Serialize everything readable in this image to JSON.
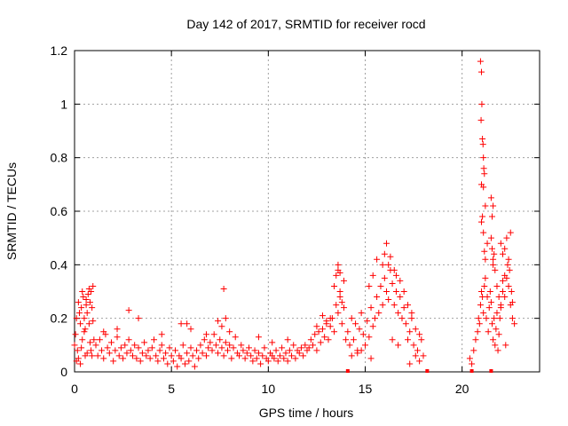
{
  "chart_data": {
    "type": "scatter",
    "title": "Day 142 of 2017, SRMTID for receiver rocd",
    "xlabel": "GPS time / hours",
    "ylabel": "SRMTID / TECUs",
    "xlim": [
      0,
      24
    ],
    "ylim": [
      0,
      1.2
    ],
    "xticks": [
      0,
      5,
      10,
      15,
      20
    ],
    "yticks": [
      0,
      0.2,
      0.4,
      0.6,
      0.8,
      1,
      1.2
    ],
    "xtick_labels": [
      "0",
      "5",
      "10",
      "15",
      "20"
    ],
    "ytick_labels": [
      "0",
      "0.2",
      "0.4",
      "0.6",
      "0.8",
      "1",
      "1.2"
    ],
    "grid": true,
    "marker": "+",
    "series_color": "#ff0000",
    "series": [
      {
        "name": "SRMTID",
        "x": [
          0.0,
          0.05,
          0.1,
          0.15,
          0.2,
          0.25,
          0.3,
          0.35,
          0.4,
          0.45,
          0.5,
          0.55,
          0.6,
          0.65,
          0.7,
          0.75,
          0.8,
          0.85,
          0.9,
          0.95,
          1.0,
          0.2,
          0.35,
          0.5,
          0.65,
          0.8,
          0.9,
          0.4,
          0.6,
          0.75,
          0.1,
          0.3,
          0.55,
          0.85,
          0.95,
          1.1,
          1.2,
          1.3,
          1.4,
          1.5,
          1.6,
          1.7,
          1.8,
          1.9,
          2.0,
          2.1,
          2.2,
          2.3,
          2.4,
          2.5,
          2.6,
          2.7,
          2.8,
          2.9,
          3.0,
          3.1,
          3.2,
          3.3,
          3.4,
          3.5,
          3.6,
          3.7,
          3.8,
          3.9,
          4.0,
          4.1,
          4.2,
          4.3,
          4.4,
          4.5,
          4.6,
          4.7,
          4.8,
          4.9,
          5.0,
          2.8,
          3.3,
          1.5,
          2.2,
          4.5,
          5.1,
          5.2,
          5.3,
          5.4,
          5.5,
          5.6,
          5.7,
          5.8,
          5.9,
          6.0,
          6.1,
          6.2,
          6.3,
          6.4,
          6.5,
          6.6,
          6.7,
          6.8,
          6.9,
          7.0,
          7.1,
          7.2,
          7.3,
          7.4,
          7.5,
          7.6,
          7.7,
          7.8,
          7.9,
          8.0,
          8.1,
          8.2,
          8.3,
          8.4,
          8.5,
          8.6,
          8.7,
          8.8,
          8.9,
          9.0,
          5.5,
          6.0,
          7.4,
          7.6,
          7.7,
          7.8,
          8.0,
          6.8,
          5.8,
          9.1,
          9.2,
          9.3,
          9.4,
          9.5,
          9.6,
          9.7,
          9.8,
          9.9,
          10.0,
          10.1,
          10.2,
          10.3,
          10.4,
          10.5,
          10.6,
          10.7,
          10.8,
          10.9,
          11.0,
          11.1,
          11.2,
          11.3,
          11.4,
          11.5,
          11.6,
          11.7,
          11.8,
          11.9,
          12.0,
          9.5,
          10.2,
          11.0,
          12.1,
          12.2,
          12.3,
          12.4,
          12.5,
          12.6,
          12.7,
          12.8,
          12.9,
          13.0,
          13.1,
          13.2,
          13.3,
          13.4,
          13.5,
          13.6,
          13.7,
          13.8,
          13.9,
          14.0,
          12.5,
          13.0,
          13.4,
          13.5,
          13.6,
          13.7,
          13.8,
          13.9,
          13.6,
          13.7,
          12.8,
          13.2,
          14.1,
          14.2,
          14.3,
          14.4,
          14.5,
          14.6,
          14.7,
          14.8,
          14.9,
          15.0,
          15.1,
          15.2,
          15.3,
          15.4,
          15.5,
          15.6,
          15.7,
          15.8,
          15.9,
          16.0,
          16.1,
          16.2,
          16.3,
          16.4,
          16.5,
          16.6,
          16.7,
          16.8,
          16.9,
          17.0,
          15.2,
          15.4,
          15.6,
          15.9,
          16.0,
          16.1,
          16.2,
          16.3,
          16.5,
          16.6,
          16.8,
          17.0,
          14.3,
          14.6,
          14.8,
          15.3,
          16.4,
          16.7,
          17.1,
          17.2,
          17.3,
          17.4,
          17.5,
          17.6,
          17.7,
          17.8,
          17.9,
          18.0,
          17.2,
          17.4,
          17.6,
          17.8,
          17.3,
          20.4,
          20.5,
          20.6,
          20.7,
          20.8,
          20.85,
          20.9,
          20.95,
          21.0,
          21.05,
          21.1,
          21.15,
          21.2,
          21.25,
          21.3,
          21.35,
          21.4,
          21.45,
          21.5,
          21.55,
          21.6,
          21.65,
          21.7,
          21.75,
          21.8,
          21.85,
          21.9,
          21.95,
          22.0,
          22.1,
          22.2,
          22.3,
          22.4,
          22.5,
          22.6,
          22.7,
          20.95,
          21.0,
          21.02,
          20.98,
          21.05,
          21.08,
          21.1,
          21.12,
          21.0,
          21.15,
          21.1,
          21.05,
          21.2,
          21.3,
          21.1,
          21.15,
          21.0,
          21.2,
          21.5,
          21.6,
          21.55,
          21.65,
          21.6,
          21.7,
          21.5,
          21.55,
          21.6,
          22.0,
          22.1,
          22.2,
          22.3,
          22.4,
          22.5,
          22.35,
          22.45,
          22.2,
          22.1,
          22.55,
          22.6,
          21.8,
          21.9,
          22.0,
          22.25
        ],
        "y": [
          0.1,
          0.14,
          0.2,
          0.08,
          0.26,
          0.22,
          0.18,
          0.24,
          0.12,
          0.28,
          0.2,
          0.16,
          0.25,
          0.22,
          0.29,
          0.18,
          0.26,
          0.3,
          0.24,
          0.19,
          0.12,
          0.05,
          0.09,
          0.15,
          0.07,
          0.11,
          0.06,
          0.3,
          0.27,
          0.31,
          0.04,
          0.03,
          0.06,
          0.08,
          0.32,
          0.1,
          0.06,
          0.12,
          0.08,
          0.05,
          0.14,
          0.09,
          0.07,
          0.11,
          0.04,
          0.08,
          0.13,
          0.06,
          0.09,
          0.05,
          0.1,
          0.07,
          0.12,
          0.08,
          0.06,
          0.1,
          0.05,
          0.09,
          0.04,
          0.07,
          0.11,
          0.06,
          0.08,
          0.05,
          0.09,
          0.12,
          0.06,
          0.04,
          0.08,
          0.1,
          0.05,
          0.07,
          0.03,
          0.09,
          0.06,
          0.23,
          0.2,
          0.15,
          0.16,
          0.14,
          0.04,
          0.08,
          0.02,
          0.06,
          0.05,
          0.1,
          0.03,
          0.07,
          0.04,
          0.09,
          0.06,
          0.02,
          0.08,
          0.05,
          0.1,
          0.07,
          0.12,
          0.06,
          0.09,
          0.11,
          0.08,
          0.14,
          0.1,
          0.07,
          0.12,
          0.09,
          0.06,
          0.11,
          0.08,
          0.1,
          0.05,
          0.09,
          0.13,
          0.07,
          0.06,
          0.1,
          0.08,
          0.05,
          0.07,
          0.09,
          0.18,
          0.16,
          0.19,
          0.17,
          0.31,
          0.2,
          0.15,
          0.14,
          0.18,
          0.06,
          0.04,
          0.08,
          0.05,
          0.07,
          0.03,
          0.06,
          0.09,
          0.05,
          0.04,
          0.07,
          0.06,
          0.05,
          0.08,
          0.04,
          0.06,
          0.09,
          0.05,
          0.07,
          0.04,
          0.08,
          0.06,
          0.1,
          0.05,
          0.08,
          0.07,
          0.09,
          0.06,
          0.1,
          0.08,
          0.13,
          0.11,
          0.12,
          0.09,
          0.12,
          0.1,
          0.14,
          0.08,
          0.15,
          0.11,
          0.16,
          0.13,
          0.18,
          0.12,
          0.17,
          0.2,
          0.15,
          0.25,
          0.22,
          0.28,
          0.18,
          0.24,
          0.12,
          0.17,
          0.19,
          0.32,
          0.36,
          0.38,
          0.3,
          0.26,
          0.34,
          0.4,
          0.37,
          0.21,
          0.2,
          0.15,
          0.1,
          0.2,
          0.12,
          0.18,
          0.08,
          0.16,
          0.22,
          0.14,
          0.1,
          0.19,
          0.13,
          0.24,
          0.17,
          0.2,
          0.28,
          0.22,
          0.32,
          0.25,
          0.35,
          0.3,
          0.27,
          0.38,
          0.33,
          0.25,
          0.3,
          0.22,
          0.28,
          0.2,
          0.24,
          0.32,
          0.36,
          0.42,
          0.4,
          0.44,
          0.48,
          0.4,
          0.43,
          0.38,
          0.36,
          0.34,
          0.3,
          0.06,
          0.07,
          0.08,
          0.05,
          0.12,
          0.1,
          0.18,
          0.12,
          0.15,
          0.2,
          0.1,
          0.16,
          0.08,
          0.14,
          0.12,
          0.06,
          0.25,
          0.22,
          0.06,
          0.04,
          0.03,
          0.05,
          0.03,
          0.08,
          0.12,
          0.15,
          0.2,
          0.18,
          0.25,
          0.3,
          0.28,
          0.22,
          0.32,
          0.35,
          0.2,
          0.28,
          0.15,
          0.24,
          0.3,
          0.26,
          0.18,
          0.12,
          0.2,
          0.1,
          0.16,
          0.22,
          0.08,
          0.14,
          0.2,
          0.25,
          0.3,
          0.28,
          0.35,
          0.32,
          0.25,
          0.2,
          0.18,
          1.16,
          1.12,
          1.0,
          0.94,
          0.87,
          0.85,
          0.8,
          0.76,
          0.7,
          0.74,
          0.69,
          0.58,
          0.62,
          0.48,
          0.52,
          0.45,
          0.56,
          0.42,
          0.65,
          0.62,
          0.58,
          0.44,
          0.4,
          0.38,
          0.5,
          0.46,
          0.42,
          0.48,
          0.44,
          0.46,
          0.5,
          0.42,
          0.52,
          0.4,
          0.38,
          0.36,
          0.34,
          0.3,
          0.26,
          0.32,
          0.28,
          0.24,
          0.1
        ]
      }
    ],
    "zero_markers_x": [
      14.1,
      18.2,
      20.5,
      21.5
    ]
  }
}
